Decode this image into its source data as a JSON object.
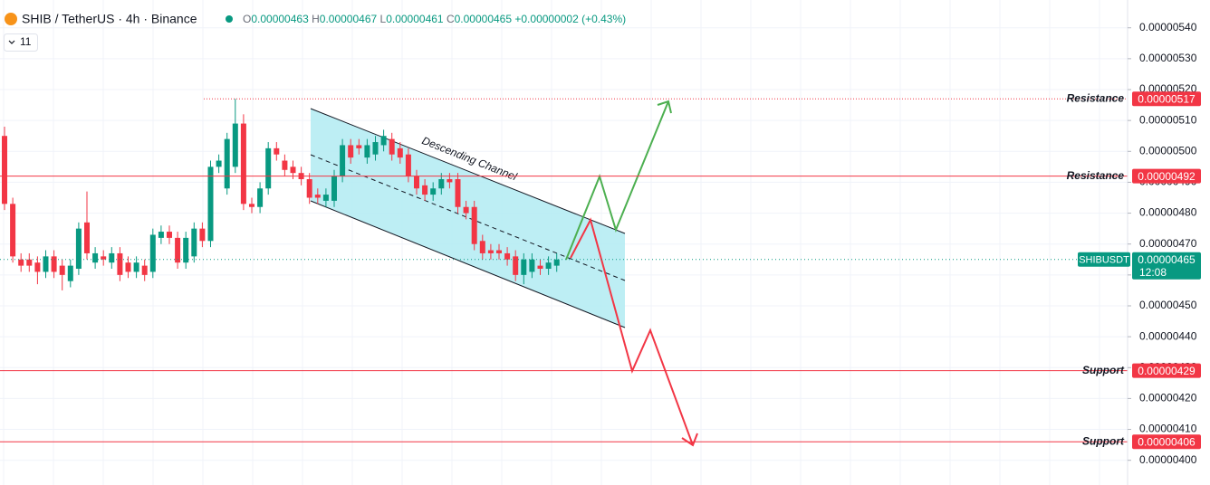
{
  "chart_data": {
    "type": "candlestick",
    "title": "SHIB / TetherUS · 4h · Binance",
    "ohlc": [
      {
        "label": "O",
        "value": "0.00000463"
      },
      {
        "label": "H",
        "value": "0.00000467"
      },
      {
        "label": "L",
        "value": "0.00000461"
      },
      {
        "label": "C",
        "value": "0.00000465"
      }
    ],
    "change": "+0.00000002 (+0.43%)",
    "indicator_count": "11",
    "annotation": "Descending Channel",
    "up_color": "#089981",
    "down_color": "#f23645",
    "open": [
      5.05e-06,
      4.83e-06,
      4.65e-06,
      4.65e-06,
      4.64e-06,
      4.61e-06,
      4.66e-06,
      4.63e-06,
      4.58e-06,
      4.62e-06,
      4.77e-06,
      4.64e-06,
      4.66e-06,
      4.64e-06,
      4.67e-06,
      4.64e-06,
      4.61e-06,
      4.63e-06,
      4.61e-06,
      4.72e-06,
      4.74e-06,
      4.72e-06,
      4.64e-06,
      4.66e-06,
      4.75e-06,
      4.71e-06,
      4.95e-06,
      4.88e-06,
      4.95e-06,
      5.09e-06,
      4.83e-06,
      4.82e-06,
      4.88e-06,
      5.01e-06,
      4.97e-06,
      4.95e-06,
      4.93e-06,
      4.91e-06,
      4.86e-06,
      4.84e-06,
      4.84e-06,
      4.92e-06,
      5.02e-06,
      5.02e-06,
      4.98e-06,
      4.99e-06,
      5.02e-06,
      5.04e-06,
      5.01e-06,
      4.99e-06,
      4.92e-06,
      4.89e-06,
      4.86e-06,
      4.88e-06,
      4.91e-06,
      4.91e-06,
      4.82e-06,
      4.82e-06,
      4.71e-06,
      4.68e-06,
      4.68e-06,
      4.67e-06,
      4.66e-06,
      4.6e-06,
      4.61e-06,
      4.63e-06,
      4.62e-06,
      4.63e-06
    ],
    "high": [
      5.08e-06,
      4.85e-06,
      4.67e-06,
      4.67e-06,
      4.66e-06,
      4.68e-06,
      4.68e-06,
      4.65e-06,
      4.65e-06,
      4.77e-06,
      4.87e-06,
      4.69e-06,
      4.68e-06,
      4.69e-06,
      4.69e-06,
      4.66e-06,
      4.66e-06,
      4.65e-06,
      4.75e-06,
      4.76e-06,
      4.76e-06,
      4.74e-06,
      4.74e-06,
      4.77e-06,
      4.77e-06,
      4.97e-06,
      4.99e-06,
      5.06e-06,
      5.17e-06,
      5.12e-06,
      4.85e-06,
      4.9e-06,
      5.03e-06,
      5.03e-06,
      4.99e-06,
      4.97e-06,
      4.95e-06,
      4.93e-06,
      4.88e-06,
      4.88e-06,
      4.94e-06,
      5.04e-06,
      5.04e-06,
      5.04e-06,
      5.04e-06,
      5.05e-06,
      5.07e-06,
      5.06e-06,
      5.03e-06,
      5.01e-06,
      4.94e-06,
      4.91e-06,
      4.9e-06,
      4.93e-06,
      4.93e-06,
      4.93e-06,
      4.84e-06,
      4.84e-06,
      4.73e-06,
      4.7e-06,
      4.7e-06,
      4.69e-06,
      4.68e-06,
      4.67e-06,
      4.67e-06,
      4.65e-06,
      4.66e-06,
      4.67e-06
    ],
    "low": [
      4.81e-06,
      4.64e-06,
      4.61e-06,
      4.61e-06,
      4.57e-06,
      4.59e-06,
      4.59e-06,
      4.55e-06,
      4.56e-06,
      4.6e-06,
      4.65e-06,
      4.62e-06,
      4.63e-06,
      4.62e-06,
      4.58e-06,
      4.59e-06,
      4.59e-06,
      4.58e-06,
      4.59e-06,
      4.7e-06,
      4.7e-06,
      4.62e-06,
      4.62e-06,
      4.64e-06,
      4.69e-06,
      4.69e-06,
      4.93e-06,
      4.86e-06,
      4.93e-06,
      4.81e-06,
      4.8e-06,
      4.8e-06,
      4.86e-06,
      4.97e-06,
      4.92e-06,
      4.91e-06,
      4.89e-06,
      4.83e-06,
      4.83e-06,
      4.82e-06,
      4.82e-06,
      4.9e-06,
      4.96e-06,
      4.99e-06,
      4.96e-06,
      4.97e-06,
      5e-06,
      4.97e-06,
      4.96e-06,
      4.9e-06,
      4.86e-06,
      4.84e-06,
      4.84e-06,
      4.86e-06,
      4.88e-06,
      4.8e-06,
      4.78e-06,
      4.68e-06,
      4.65e-06,
      4.65e-06,
      4.65e-06,
      4.63e-06,
      4.58e-06,
      4.57e-06,
      4.59e-06,
      4.6e-06,
      4.6e-06,
      4.61e-06
    ],
    "close": [
      4.83e-06,
      4.66e-06,
      4.63e-06,
      4.63e-06,
      4.61e-06,
      4.66e-06,
      4.61e-06,
      4.6e-06,
      4.63e-06,
      4.75e-06,
      4.67e-06,
      4.67e-06,
      4.65e-06,
      4.67e-06,
      4.6e-06,
      4.61e-06,
      4.64e-06,
      4.6e-06,
      4.73e-06,
      4.74e-06,
      4.72e-06,
      4.64e-06,
      4.72e-06,
      4.75e-06,
      4.71e-06,
      4.95e-06,
      4.97e-06,
      5.04e-06,
      5.09e-06,
      4.83e-06,
      4.82e-06,
      4.88e-06,
      5.01e-06,
      4.99e-06,
      4.94e-06,
      4.93e-06,
      4.91e-06,
      4.85e-06,
      4.85e-06,
      4.86e-06,
      4.92e-06,
      5.02e-06,
      4.98e-06,
      5.01e-06,
      5.02e-06,
      5.03e-06,
      5.05e-06,
      4.99e-06,
      4.98e-06,
      4.92e-06,
      4.88e-06,
      4.86e-06,
      4.88e-06,
      4.91e-06,
      4.9e-06,
      4.82e-06,
      4.8e-06,
      4.7e-06,
      4.67e-06,
      4.67e-06,
      4.67e-06,
      4.65e-06,
      4.6e-06,
      4.65e-06,
      4.65e-06,
      4.62e-06,
      4.64e-06,
      4.65e-06
    ],
    "ylim": [
      3.92e-06,
      5.49e-06
    ],
    "yticks": [
      {
        "value": 5.4e-06,
        "label": "0.00000540"
      },
      {
        "value": 5.3e-06,
        "label": "0.00000530"
      },
      {
        "value": 5.2e-06,
        "label": "0.00000520"
      },
      {
        "value": 5.1e-06,
        "label": "0.00000510"
      },
      {
        "value": 5e-06,
        "label": "0.00000500"
      },
      {
        "value": 4.9e-06,
        "label": "0.00000490"
      },
      {
        "value": 4.8e-06,
        "label": "0.00000480"
      },
      {
        "value": 4.7e-06,
        "label": "0.00000470"
      },
      {
        "value": 4.6e-06,
        "label": "0.00000460"
      },
      {
        "value": 4.5e-06,
        "label": "0.00000450"
      },
      {
        "value": 4.4e-06,
        "label": "0.00000440"
      },
      {
        "value": 4.3e-06,
        "label": "0.00000430"
      },
      {
        "value": 4.2e-06,
        "label": "0.00000420"
      },
      {
        "value": 4.1e-06,
        "label": "0.00000410"
      },
      {
        "value": 4e-06,
        "label": "0.00000400"
      }
    ],
    "grid": true,
    "levels": [
      {
        "name": "Resistance",
        "value": {
          "value": 5.17e-06,
          "label": "0.00000517"
        },
        "style": "dotted",
        "color": "#f23645"
      },
      {
        "name": "Resistance",
        "value": {
          "value": 4.92e-06,
          "label": "0.00000492"
        },
        "style": "solid",
        "color": "#f23645"
      },
      {
        "name": "Support",
        "value": {
          "value": 4.29e-06,
          "label": "0.00000429"
        },
        "style": "solid",
        "color": "#f23645"
      },
      {
        "name": "Support",
        "value": {
          "value": 4.06e-06,
          "label": "0.00000406"
        },
        "style": "solid",
        "color": "#f23645"
      }
    ],
    "last_price": {
      "symbol": "SHIBUSDT",
      "value": {
        "value": 4.65e-06,
        "label": "0.00000465"
      },
      "countdown": "12:08",
      "color": "#089981"
    }
  }
}
